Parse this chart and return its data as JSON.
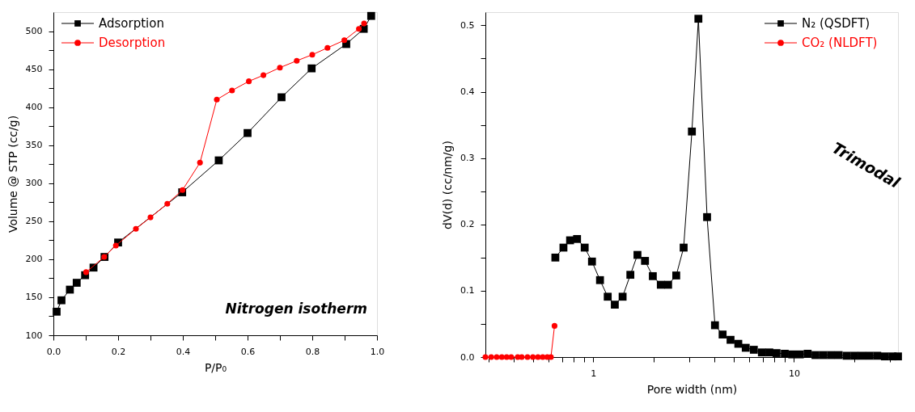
{
  "chart_data": [
    {
      "type": "line",
      "xlabel": "P/P₀",
      "ylabel": "Volume @ STP (cc/g)",
      "xlim": [
        0,
        1
      ],
      "xticks": [
        {
          "value": 0,
          "label": "0.0"
        },
        {
          "value": 0.1,
          "label": null
        },
        0.2,
        {
          "value": 0.3,
          "label": null
        },
        0.4,
        {
          "value": 0.5,
          "label": null
        },
        0.6,
        {
          "value": 0.7,
          "label": null
        },
        0.8,
        {
          "value": 0.9,
          "label": null
        },
        {
          "value": 1,
          "label": "1.0"
        }
      ],
      "ylim": [
        100,
        525
      ],
      "yticks": [
        100,
        {
          "value": 125,
          "label": null
        },
        150,
        {
          "value": 175,
          "label": null
        },
        200,
        {
          "value": 225,
          "label": null
        },
        250,
        {
          "value": 275,
          "label": null
        },
        300,
        {
          "value": 325,
          "label": null
        },
        350,
        {
          "value": 375,
          "label": null
        },
        400,
        {
          "value": 425,
          "label": null
        },
        450,
        {
          "value": 475,
          "label": null
        },
        500
      ],
      "grid": false,
      "legend": "top left",
      "line_style": "solid",
      "annotations": [
        "Nitrogen isotherm"
      ],
      "series": [
        {
          "name": "Adsorption",
          "color": "#000000",
          "marker": "square",
          "x": [
            0.01,
            0.025,
            0.051,
            0.072,
            0.098,
            0.124,
            0.158,
            0.2,
            0.398,
            0.511,
            0.6,
            0.705,
            0.798,
            0.905,
            0.959,
            0.982
          ],
          "values": [
            131,
            146,
            160,
            169,
            179,
            189,
            203,
            222,
            288,
            330,
            366,
            413,
            451,
            483,
            503,
            520
          ]
        },
        {
          "name": "Desorption",
          "color": "#ff0000",
          "marker": "circle",
          "x": [
            0.101,
            0.157,
            0.193,
            0.255,
            0.3,
            0.352,
            0.399,
            0.453,
            0.505,
            0.552,
            0.604,
            0.649,
            0.7,
            0.752,
            0.8,
            0.847,
            0.899,
            0.944,
            0.96
          ],
          "values": [
            183,
            203,
            218,
            240,
            255,
            273,
            291,
            327,
            410,
            422,
            434,
            442,
            452,
            461,
            469,
            478,
            488,
            503,
            510
          ]
        }
      ]
    },
    {
      "type": "line",
      "xlabel": "Pore width (nm)",
      "ylabel": "dV(d) (cc/nm/g)",
      "log": "x",
      "xlim": [
        0.29,
        33
      ],
      "xticks": [
        {
          "value": 0.3,
          "label": null
        },
        {
          "value": 0.4,
          "label": null
        },
        {
          "value": 0.5,
          "label": null
        },
        {
          "value": 0.6,
          "label": null
        },
        {
          "value": 0.7,
          "label": null
        },
        {
          "value": 0.8,
          "label": null
        },
        {
          "value": 0.9,
          "label": null
        },
        1,
        {
          "value": 2,
          "label": null
        },
        {
          "value": 3,
          "label": null
        },
        {
          "value": 4,
          "label": null
        },
        {
          "value": 5,
          "label": null
        },
        {
          "value": 6,
          "label": null
        },
        {
          "value": 7,
          "label": null
        },
        {
          "value": 8,
          "label": null
        },
        {
          "value": 9,
          "label": null
        },
        10,
        {
          "value": 20,
          "label": null
        },
        {
          "value": 30,
          "label": null
        }
      ],
      "ylim": [
        0,
        0.52
      ],
      "yticks": [
        {
          "value": 0,
          "label": "0.0"
        },
        {
          "value": 0.05,
          "label": null
        },
        0.1,
        {
          "value": 0.15,
          "label": null
        },
        0.2,
        {
          "value": 0.25,
          "label": null
        },
        0.3,
        {
          "value": 0.35,
          "label": null
        },
        0.4,
        {
          "value": 0.45,
          "label": null
        },
        0.5
      ],
      "grid": false,
      "legend": "top right",
      "line_style": "solid",
      "annotations": [
        "Trimodal"
      ],
      "series": [
        {
          "name": "N₂ (QSDFT)",
          "color": "#000000",
          "marker": "square",
          "x": [
            0.647,
            0.71,
            0.766,
            0.83,
            0.906,
            0.985,
            1.08,
            1.18,
            1.28,
            1.4,
            1.53,
            1.66,
            1.81,
            1.98,
            2.17,
            2.36,
            2.59,
            2.82,
            3.1,
            3.34,
            3.69,
            4.04,
            4.41,
            4.83,
            5.28,
            5.75,
            6.31,
            6.92,
            7.54,
            8.19,
            9.0,
            9.8,
            10.7,
            11.7,
            12.8,
            14.0,
            15.3,
            16.7,
            18.3,
            20.0,
            21.8,
            23.8,
            26.0,
            28.4,
            31.0,
            33.0
          ],
          "values": [
            0.15,
            0.165,
            0.176,
            0.178,
            0.165,
            0.144,
            0.116,
            0.091,
            0.079,
            0.091,
            0.124,
            0.154,
            0.145,
            0.122,
            0.109,
            0.109,
            0.123,
            0.165,
            0.34,
            0.51,
            0.211,
            0.048,
            0.034,
            0.026,
            0.02,
            0.014,
            0.011,
            0.007,
            0.007,
            0.006,
            0.005,
            0.004,
            0.004,
            0.005,
            0.003,
            0.003,
            0.003,
            0.003,
            0.002,
            0.002,
            0.002,
            0.002,
            0.002,
            0.001,
            0.001,
            0.001
          ]
        },
        {
          "name": "CO₂ (NLDFT)",
          "color": "#ff0000",
          "marker": "circle",
          "x": [
            0.29,
            0.31,
            0.33,
            0.35,
            0.37,
            0.39,
            0.42,
            0.44,
            0.47,
            0.5,
            0.53,
            0.56,
            0.59,
            0.615,
            0.641
          ],
          "values": [
            0,
            0,
            0,
            0,
            0,
            0,
            0,
            0,
            0,
            0,
            0,
            0,
            0,
            0,
            0.047
          ]
        }
      ]
    }
  ]
}
